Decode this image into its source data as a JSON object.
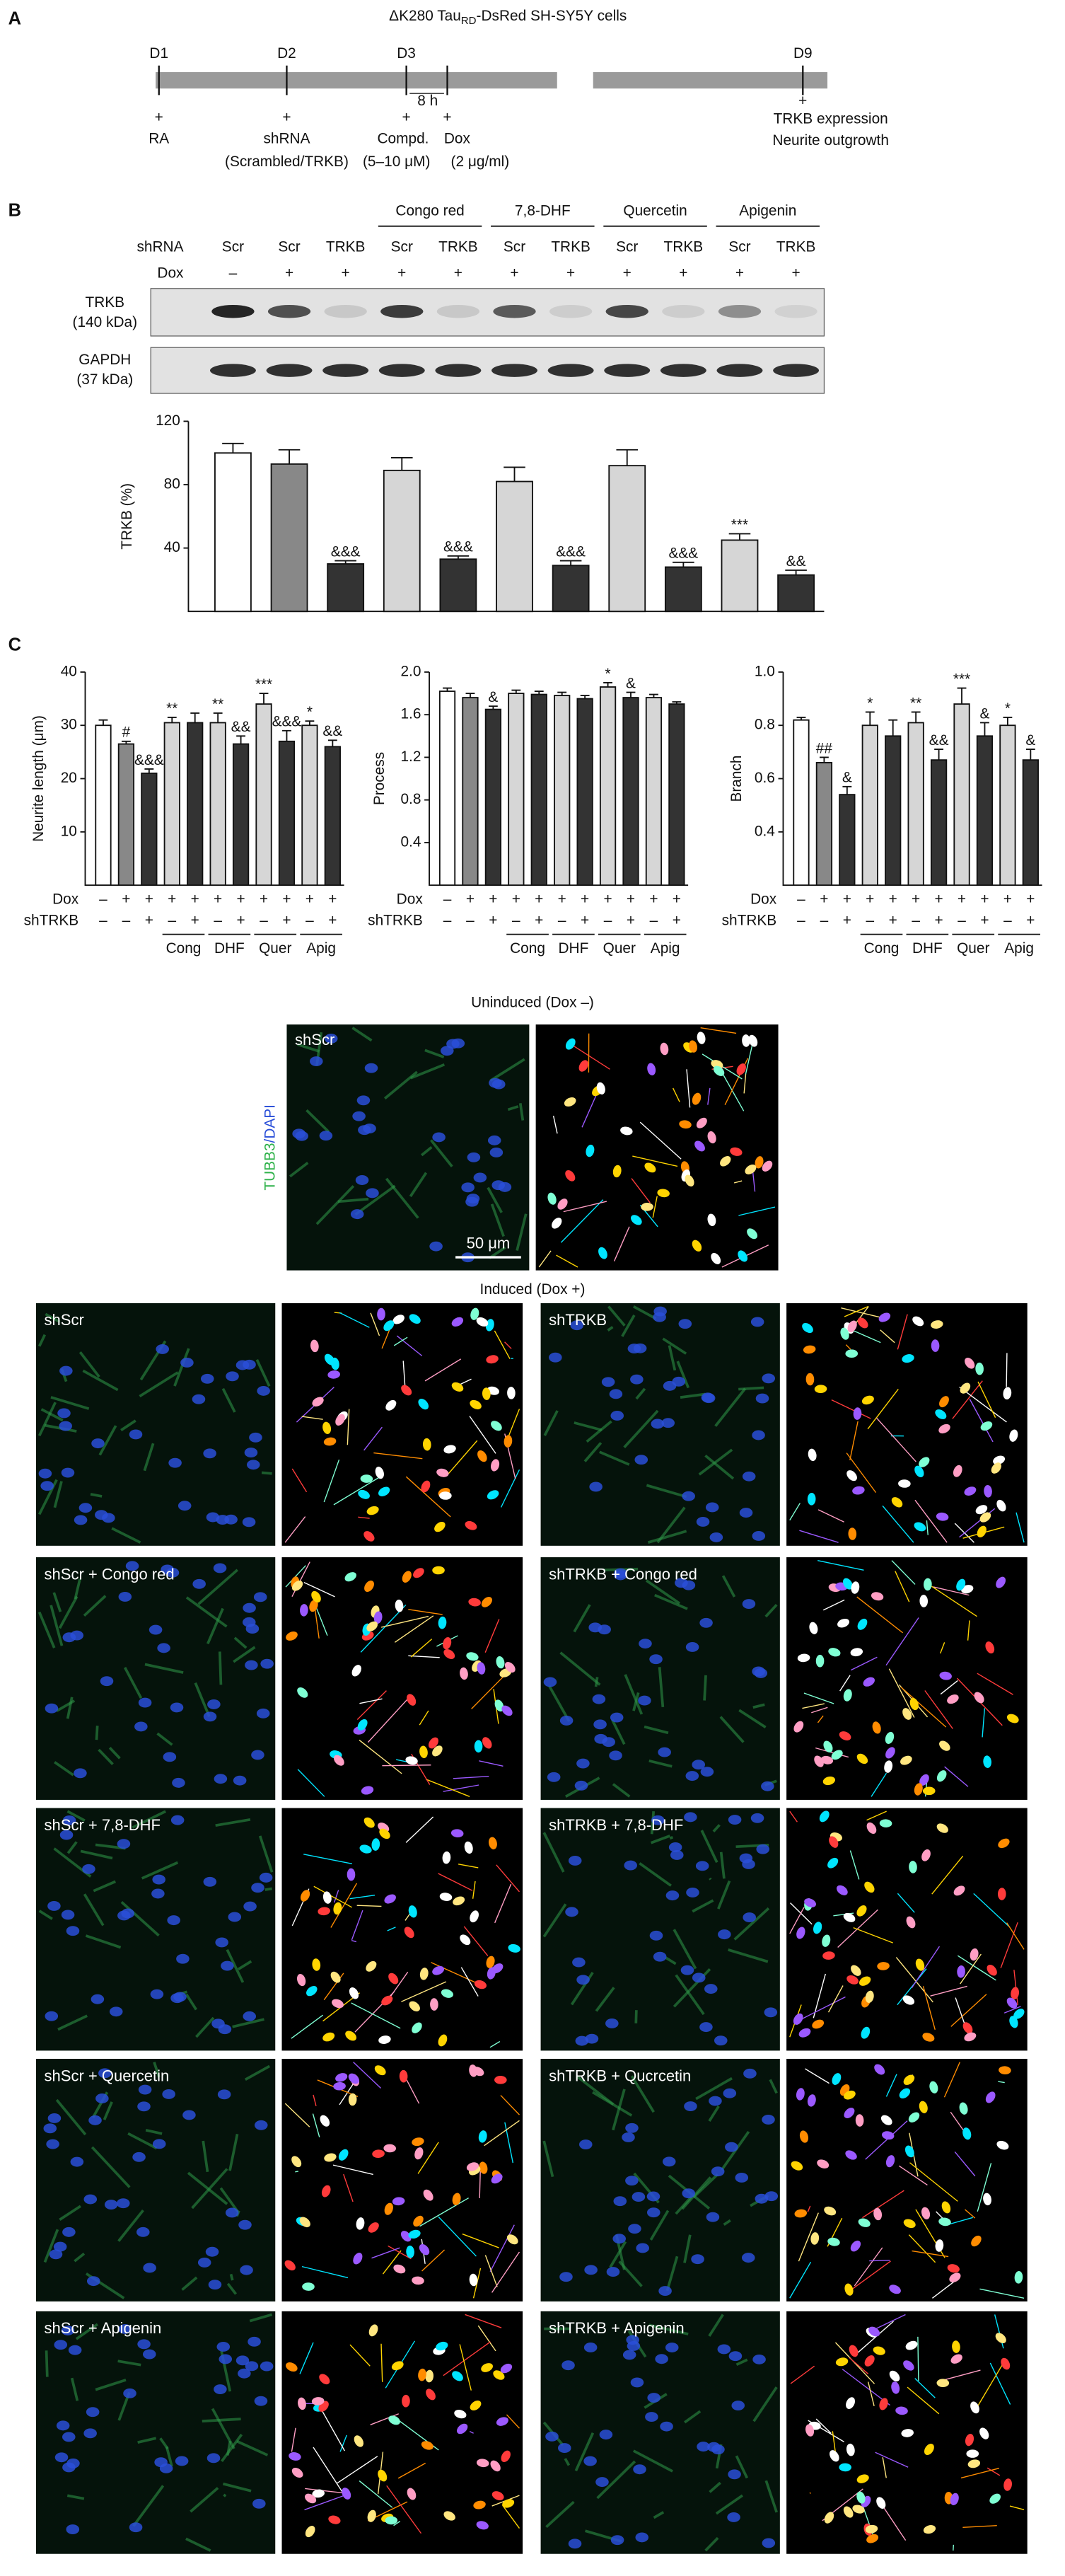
{
  "panels": [
    "A",
    "B",
    "C"
  ],
  "panel_a": {
    "title_parts": [
      "ΔK280 Tau",
      "RD",
      "-DsRed SH-SY5Y cells"
    ],
    "days": [
      "D1",
      "D2",
      "D3",
      "D9"
    ],
    "interval": "8 h",
    "plus": "+",
    "steps": [
      "RA",
      "shRNA",
      "Compd.",
      "Dox"
    ],
    "step_notes": [
      "(Scrambled/TRKB)",
      "(5–10 μM)",
      "(2 μg/ml)"
    ],
    "readouts": [
      "TRKB expression",
      "Neurite outgrowth"
    ]
  },
  "blot": {
    "rows": [
      [
        "TRKB",
        "(140 kDa)"
      ],
      [
        "GAPDH",
        "(37 kDa)"
      ]
    ]
  },
  "chart_data": [
    {
      "type": "bar",
      "y_label": "TRKB (%)",
      "row_labels": {
        "categories": "shRNA",
        "dox": "Dox"
      },
      "categories": [
        "Scr",
        "Scr",
        "TRKB",
        "Scr",
        "TRKB",
        "Scr",
        "TRKB",
        "Scr",
        "TRKB",
        "Scr",
        "TRKB"
      ],
      "dox": [
        "–",
        "+",
        "+",
        "+",
        "+",
        "+",
        "+",
        "+",
        "+",
        "+",
        "+"
      ],
      "groups": [
        "Congo red",
        "7,8-DHF",
        "Quercetin",
        "Apigenin"
      ],
      "values": [
        100,
        93,
        30,
        89,
        33,
        82,
        29,
        92,
        28,
        45,
        23
      ],
      "errors": [
        6,
        9,
        2,
        8,
        2,
        9,
        3,
        10,
        3,
        4,
        3
      ],
      "annotations": [
        null,
        null,
        "&&&",
        null,
        "&&&",
        null,
        "&&&",
        null,
        "&&&",
        "***",
        "&&"
      ],
      "colors": [
        "#ffffff",
        "#888888",
        "#333333",
        "#d6d6d6",
        "#333333",
        "#d6d6d6",
        "#333333",
        "#d6d6d6",
        "#333333",
        "#d6d6d6",
        "#333333"
      ],
      "ylim": [
        0,
        120
      ],
      "yticks": [
        40,
        80,
        120
      ]
    },
    {
      "type": "bar",
      "y_label": "Neurite length (μm)",
      "row_labels": {
        "dox": "Dox",
        "categories": "shTRKB"
      },
      "dox": [
        "–",
        "+",
        "+",
        "+",
        "+",
        "+",
        "+",
        "+",
        "+",
        "+",
        "+"
      ],
      "categories": [
        "–",
        "–",
        "+",
        "–",
        "+",
        "–",
        "+",
        "–",
        "+",
        "–",
        "+"
      ],
      "groups": [
        "Cong",
        "DHF",
        "Quer",
        "Apig"
      ],
      "values": [
        30,
        26.5,
        21,
        30.5,
        30.5,
        30.5,
        26.5,
        34,
        27,
        30,
        26
      ],
      "errors": [
        1,
        0.5,
        0.8,
        1,
        1.8,
        1.8,
        1.5,
        2,
        2,
        0.8,
        1.2
      ],
      "annotations": [
        null,
        "#",
        "&&&",
        "**",
        null,
        "**",
        "&&",
        "***",
        "&&&",
        "*",
        "&&"
      ],
      "colors": [
        "#ffffff",
        "#888888",
        "#333333",
        "#d6d6d6",
        "#333333",
        "#d6d6d6",
        "#333333",
        "#d6d6d6",
        "#333333",
        "#d6d6d6",
        "#333333"
      ],
      "ylim": [
        0,
        40
      ],
      "yticks": [
        10,
        20,
        30,
        40
      ]
    },
    {
      "type": "bar",
      "y_label": "Process",
      "row_labels": {
        "dox": "Dox",
        "categories": "shTRKB"
      },
      "dox": [
        "–",
        "+",
        "+",
        "+",
        "+",
        "+",
        "+",
        "+",
        "+",
        "+",
        "+"
      ],
      "categories": [
        "–",
        "–",
        "+",
        "–",
        "+",
        "–",
        "+",
        "–",
        "+",
        "–",
        "+"
      ],
      "groups": [
        "Cong",
        "DHF",
        "Quer",
        "Apig"
      ],
      "values": [
        1.82,
        1.76,
        1.65,
        1.8,
        1.79,
        1.78,
        1.75,
        1.86,
        1.76,
        1.76,
        1.7
      ],
      "errors": [
        0.03,
        0.04,
        0.03,
        0.03,
        0.03,
        0.03,
        0.03,
        0.04,
        0.05,
        0.03,
        0.02
      ],
      "annotations": [
        null,
        null,
        "&",
        null,
        null,
        null,
        null,
        "*",
        "&",
        null,
        null
      ],
      "colors": [
        "#ffffff",
        "#888888",
        "#333333",
        "#d6d6d6",
        "#333333",
        "#d6d6d6",
        "#333333",
        "#d6d6d6",
        "#333333",
        "#d6d6d6",
        "#333333"
      ],
      "ylim": [
        0,
        2
      ],
      "yticks": [
        0.4,
        0.8,
        1.2,
        1.6,
        {
          "value": 2,
          "label": "2.0"
        }
      ]
    },
    {
      "type": "bar",
      "y_label": "Branch",
      "row_labels": {
        "dox": "Dox",
        "categories": "shTRKB"
      },
      "dox": [
        "–",
        "+",
        "+",
        "+",
        "+",
        "+",
        "+",
        "+",
        "+",
        "+",
        "+"
      ],
      "categories": [
        "–",
        "–",
        "+",
        "–",
        "+",
        "–",
        "+",
        "–",
        "+",
        "–",
        "+"
      ],
      "groups": [
        "Cong",
        "DHF",
        "Quer",
        "Apig"
      ],
      "values": [
        0.82,
        0.66,
        0.54,
        0.8,
        0.76,
        0.81,
        0.67,
        0.88,
        0.76,
        0.8,
        0.67
      ],
      "errors": [
        0.01,
        0.02,
        0.03,
        0.05,
        0.06,
        0.04,
        0.04,
        0.06,
        0.05,
        0.03,
        0.04
      ],
      "annotations": [
        null,
        "##",
        "&",
        "*",
        null,
        "**",
        "&&",
        "***",
        "&",
        "*",
        "&"
      ],
      "colors": [
        "#ffffff",
        "#888888",
        "#333333",
        "#d6d6d6",
        "#333333",
        "#d6d6d6",
        "#333333",
        "#d6d6d6",
        "#333333",
        "#d6d6d6",
        "#333333"
      ],
      "ylim": [
        0.2,
        1
      ],
      "yticks": [
        0.4,
        0.6,
        0.8,
        {
          "value": 1,
          "label": "1.0"
        }
      ]
    }
  ],
  "micrographs": {
    "uninduced_title": "Uninduced (Dox –)",
    "induced_title": "Induced (Dox +)",
    "stain": [
      "TUBB3",
      "/DAPI"
    ],
    "scale_bar": "50 μm",
    "uninduced_label": "shScr",
    "induced_labels": [
      "shScr",
      "shTRKB",
      "shScr + Congo red",
      "shTRKB + Congo red",
      "shScr + 7,8-DHF",
      "shTRKB + 7,8-DHF",
      "shScr + Quercetin",
      "shTRKB + Qucrcetin",
      "shScr + Apigenin",
      "shTRKB + Apigenin"
    ]
  }
}
